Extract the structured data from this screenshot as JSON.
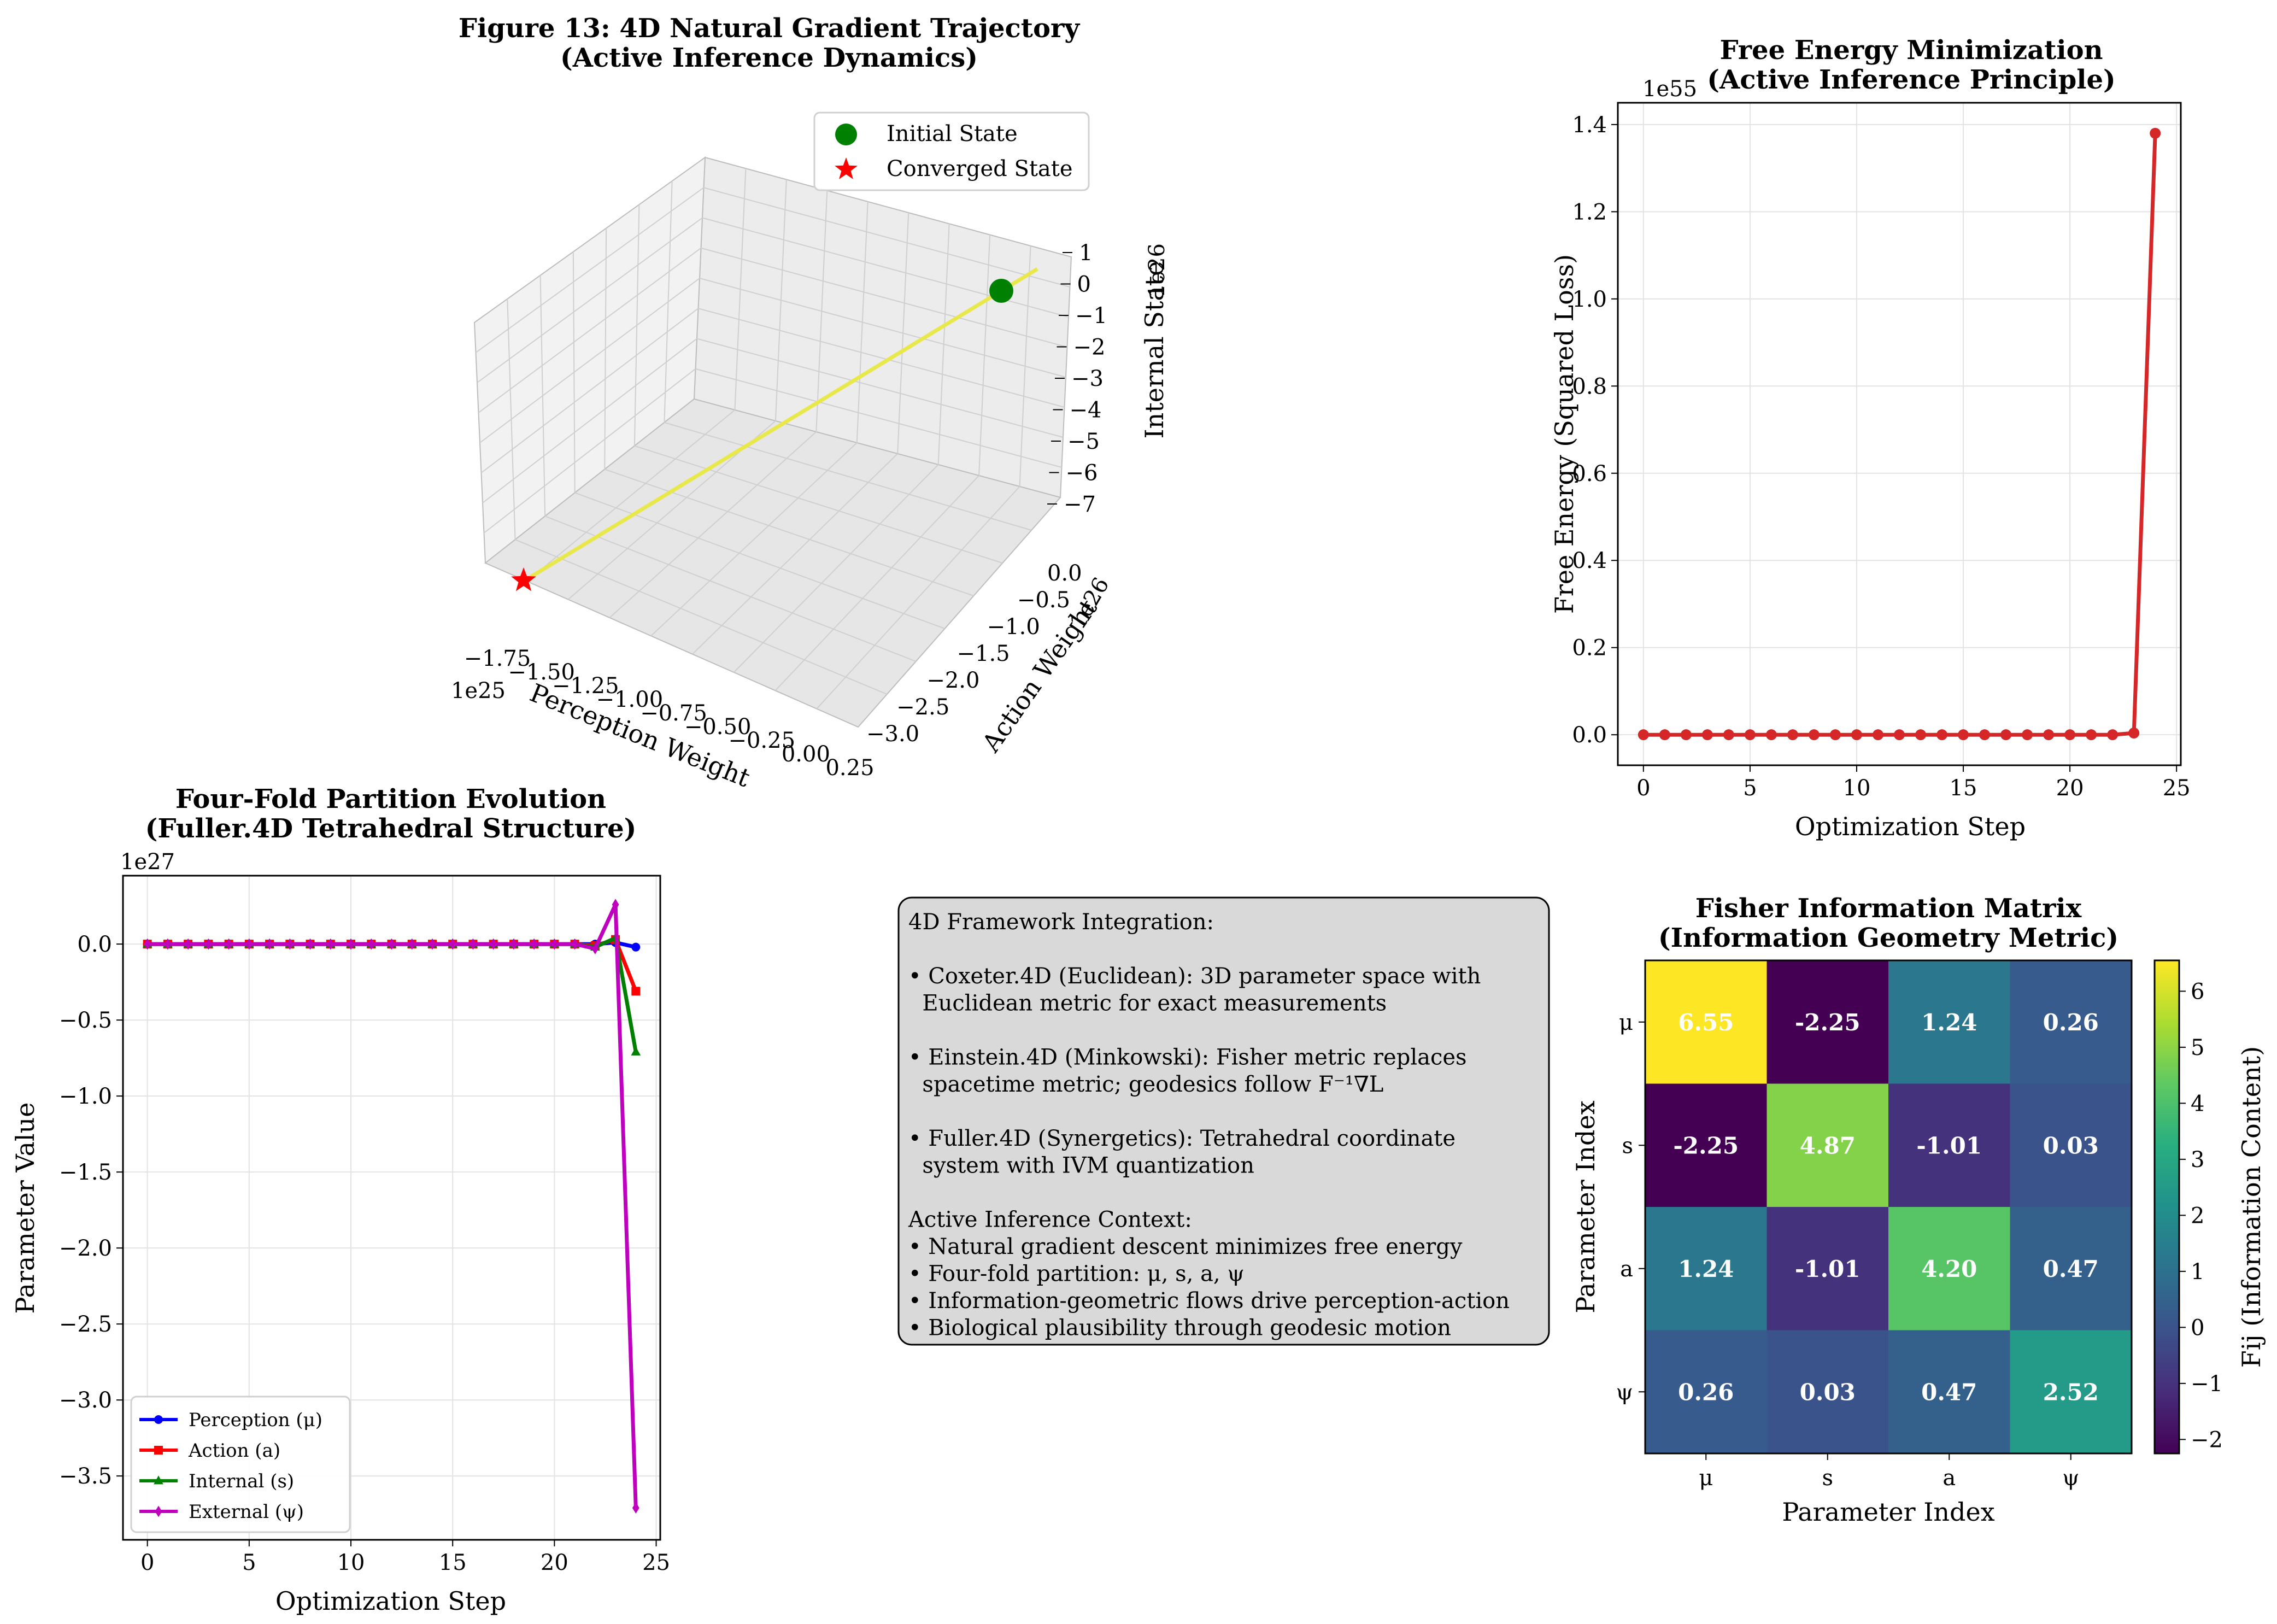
{
  "chart_data": [
    {
      "type": "scatter3d",
      "title": "Figure 13: 4D Natural Gradient Trajectory\n(Active Inference Dynamics)",
      "xlabel": "Perception Weight",
      "ylabel": "Action Weight",
      "zlabel": "Internal State",
      "x_multiplier": "1e25",
      "y_multiplier": "1e26",
      "z_multiplier": "1e26",
      "x_ticks": [
        "−1.75",
        "−1.50",
        "−1.25",
        "−1.00",
        "−0.75",
        "−0.50",
        "−0.25",
        "0.00",
        "0.25"
      ],
      "y_ticks": [
        "−3.0",
        "−2.5",
        "−2.0",
        "−1.5",
        "−1.0",
        "−0.5",
        "0.0"
      ],
      "z_ticks": [
        "1",
        "0",
        "−1",
        "−2",
        "−3",
        "−4",
        "−5",
        "−6",
        "−7"
      ],
      "trajectory_color": "#e8e84a",
      "legend": [
        {
          "label": "Initial State",
          "color": "#008000",
          "marker": "circle"
        },
        {
          "label": "Converged State",
          "color": "#ff0000",
          "marker": "star"
        }
      ],
      "initial_state": {
        "x": 0.0,
        "y": 0.0,
        "z": 0.0
      },
      "converged_state": {
        "x": -1.8,
        "y": -3.2,
        "z": -7.2
      }
    },
    {
      "type": "line",
      "title": "Free Energy Minimization\n(Active Inference Principle)",
      "xlabel": "Optimization Step",
      "ylabel": "Free Energy (Squared Loss)",
      "y_multiplier": "1e55",
      "xlim": [
        -1.2,
        25.2
      ],
      "ylim": [
        -0.07,
        1.45
      ],
      "x_ticks": [
        0,
        5,
        10,
        15,
        20,
        25
      ],
      "y_ticks": [
        "0.0",
        "0.2",
        "0.4",
        "0.6",
        "0.8",
        "1.0",
        "1.2",
        "1.4"
      ],
      "y_tick_values": [
        0,
        0.2,
        0.4,
        0.6,
        0.8,
        1.0,
        1.2,
        1.4
      ],
      "color": "#d62728",
      "x": [
        0,
        1,
        2,
        3,
        4,
        5,
        6,
        7,
        8,
        9,
        10,
        11,
        12,
        13,
        14,
        15,
        16,
        17,
        18,
        19,
        20,
        21,
        22,
        23,
        24
      ],
      "values": [
        0,
        0,
        0,
        0,
        0,
        0,
        0,
        0,
        0,
        0,
        0,
        0,
        0,
        0,
        0,
        0,
        0,
        0,
        0,
        0,
        0,
        0,
        0,
        0.004,
        1.38
      ],
      "grid": true
    },
    {
      "type": "line",
      "title": "Four-Fold Partition Evolution\n(Fuller.4D Tetrahedral Structure)",
      "xlabel": "Optimization Step",
      "ylabel": "Parameter Value",
      "y_multiplier": "1e27",
      "xlim": [
        -1.2,
        25.2
      ],
      "ylim": [
        -3.92,
        0.45
      ],
      "x_ticks": [
        0,
        5,
        10,
        15,
        20,
        25
      ],
      "y_ticks": [
        "0.0",
        "−0.5",
        "−1.0",
        "−1.5",
        "−2.0",
        "−2.5",
        "−3.0",
        "−3.5"
      ],
      "y_tick_values": [
        0,
        -0.5,
        -1.0,
        -1.5,
        -2.0,
        -2.5,
        -3.0,
        -3.5
      ],
      "x": [
        0,
        1,
        2,
        3,
        4,
        5,
        6,
        7,
        8,
        9,
        10,
        11,
        12,
        13,
        14,
        15,
        16,
        17,
        18,
        19,
        20,
        21,
        22,
        23,
        24
      ],
      "legend_position": "lower-left",
      "grid": true,
      "series": [
        {
          "name": "Perception (μ)",
          "color": "#0000ff",
          "marker": "circle",
          "values": [
            0,
            0,
            0,
            0,
            0,
            0,
            0,
            0,
            0,
            0,
            0,
            0,
            0,
            0,
            0,
            0,
            0,
            0,
            0,
            0,
            0,
            0,
            0,
            0.01,
            -0.02
          ]
        },
        {
          "name": "Action (a)",
          "color": "#ff0000",
          "marker": "square",
          "values": [
            0,
            0,
            0,
            0,
            0,
            0,
            0,
            0,
            0,
            0,
            0,
            0,
            0,
            0,
            0,
            0,
            0,
            0,
            0,
            0,
            0,
            0,
            -0.01,
            0.03,
            -0.31
          ]
        },
        {
          "name": "Internal (s)",
          "color": "#008000",
          "marker": "triangle",
          "values": [
            0,
            0,
            0,
            0,
            0,
            0,
            0,
            0,
            0,
            0,
            0,
            0,
            0,
            0,
            0,
            0,
            0,
            0,
            0,
            0,
            0,
            0,
            -0.02,
            0.04,
            -0.71
          ]
        },
        {
          "name": "External (ψ)",
          "color": "#bf00bf",
          "marker": "diamond",
          "values": [
            0,
            0,
            0,
            0,
            0,
            0,
            0,
            0,
            0,
            0,
            0,
            0,
            0,
            0,
            0,
            0,
            0,
            0,
            0,
            0,
            0,
            0,
            -0.03,
            0.26,
            -3.71
          ]
        }
      ]
    },
    {
      "type": "heatmap",
      "title": "Fisher Information Matrix\n(Information Geometry Metric)",
      "xlabel": "Parameter Index",
      "ylabel": "Parameter Index",
      "colorbar_label": "Fij (Information Content)",
      "colorbar_ticks": [
        "6",
        "5",
        "4",
        "3",
        "2",
        "1",
        "0",
        "−1",
        "−2"
      ],
      "colorbar_tick_values": [
        6,
        5,
        4,
        3,
        2,
        1,
        0,
        -1,
        -2
      ],
      "vmin": -2.25,
      "vmax": 6.55,
      "row_labels": [
        "μ",
        "s",
        "a",
        "ψ"
      ],
      "col_labels": [
        "μ",
        "s",
        "a",
        "ψ"
      ],
      "values": [
        [
          6.55,
          -2.25,
          1.24,
          0.26
        ],
        [
          -2.25,
          4.87,
          -1.01,
          0.03
        ],
        [
          1.24,
          -1.01,
          4.2,
          0.47
        ],
        [
          0.26,
          0.03,
          0.47,
          2.52
        ]
      ],
      "cell_labels": [
        [
          "6.55",
          "-2.25",
          "1.24",
          "0.26"
        ],
        [
          "-2.25",
          "4.87",
          "-1.01",
          "0.03"
        ],
        [
          "1.24",
          "-1.01",
          "4.20",
          "0.47"
        ],
        [
          "0.26",
          "0.03",
          "0.47",
          "2.52"
        ]
      ],
      "colormap": "viridis"
    }
  ],
  "info_box": {
    "lines": [
      "4D Framework Integration:",
      "",
      "• Coxeter.4D (Euclidean): 3D parameter space with",
      "  Euclidean metric for exact measurements",
      "",
      "• Einstein.4D (Minkowski): Fisher metric replaces",
      "  spacetime metric; geodesics follow F⁻¹∇L",
      "",
      "• Fuller.4D (Synergetics): Tetrahedral coordinate",
      "  system with IVM quantization",
      "",
      "Active Inference Context:",
      "• Natural gradient descent minimizes free energy",
      "• Four-fold partition: μ, s, a, ψ",
      "• Information-geometric flows drive perception-action",
      "• Biological plausibility through geodesic motion"
    ]
  }
}
